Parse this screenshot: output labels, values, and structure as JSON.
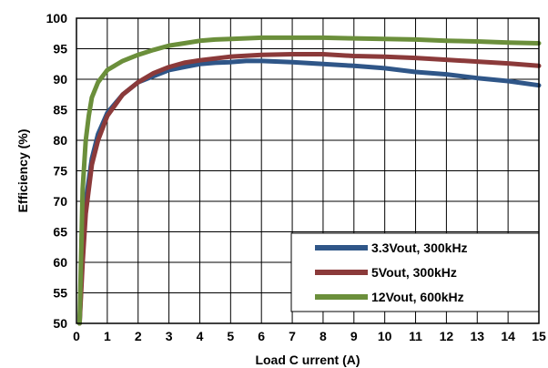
{
  "chart_data": {
    "type": "line",
    "xlabel": "Load C urrent (A)",
    "ylabel": "Efficiency (%)",
    "xlim": [
      0,
      15
    ],
    "ylim": [
      50,
      100
    ],
    "x_ticks": [
      "0",
      "1",
      "2",
      "3",
      "4",
      "5",
      "6",
      "7",
      "8",
      "9",
      "10",
      "11",
      "12",
      "13",
      "14",
      "15"
    ],
    "y_ticks": [
      "50",
      "55",
      "60",
      "65",
      "70",
      "75",
      "80",
      "85",
      "90",
      "95",
      "100"
    ],
    "grid": true,
    "legend_position": "bottom-right",
    "series": [
      {
        "name": "3.3Vout, 300kHz",
        "color": "#2f5688",
        "x": [
          0.1,
          0.2,
          0.3,
          0.5,
          0.7,
          1.0,
          1.5,
          2.0,
          2.5,
          3.0,
          3.5,
          4.0,
          4.5,
          5.0,
          5.5,
          6.0,
          7.0,
          8.0,
          9.0,
          10.0,
          11.0,
          12.0,
          13.0,
          14.0,
          15.0
        ],
        "y": [
          50,
          62,
          70,
          77,
          81,
          84.5,
          87.5,
          89.5,
          90.5,
          91.5,
          92.0,
          92.5,
          92.7,
          92.8,
          93.0,
          93.0,
          92.8,
          92.5,
          92.2,
          91.8,
          91.2,
          90.8,
          90.2,
          89.7,
          89.0
        ]
      },
      {
        "name": "5Vout, 300kHz",
        "color": "#8b3a3a",
        "x": [
          0.1,
          0.2,
          0.3,
          0.5,
          0.7,
          1.0,
          1.5,
          2.0,
          2.5,
          3.0,
          3.5,
          4.0,
          4.5,
          5.0,
          6.0,
          7.0,
          8.0,
          9.0,
          10.0,
          11.0,
          12.0,
          13.0,
          14.0,
          15.0
        ],
        "y": [
          50,
          60,
          68,
          76,
          80,
          84,
          87.5,
          89.5,
          91,
          92,
          92.7,
          93.1,
          93.4,
          93.7,
          94.0,
          94.1,
          94.1,
          93.8,
          93.7,
          93.5,
          93.2,
          92.9,
          92.6,
          92.2
        ]
      },
      {
        "name": "12Vout, 600kHz",
        "color": "#6b8f3b",
        "x": [
          0.1,
          0.2,
          0.3,
          0.4,
          0.5,
          0.7,
          1.0,
          1.5,
          2.0,
          2.5,
          3.0,
          3.5,
          4.0,
          4.5,
          5.0,
          6.0,
          7.0,
          8.0,
          9.0,
          10.0,
          11.0,
          12.0,
          13.0,
          14.0,
          15.0
        ],
        "y": [
          50,
          72,
          80,
          84,
          87,
          89.5,
          91.5,
          93,
          94,
          94.8,
          95.5,
          95.9,
          96.3,
          96.5,
          96.6,
          96.8,
          96.8,
          96.8,
          96.7,
          96.6,
          96.5,
          96.3,
          96.2,
          96.0,
          95.9
        ]
      }
    ]
  }
}
